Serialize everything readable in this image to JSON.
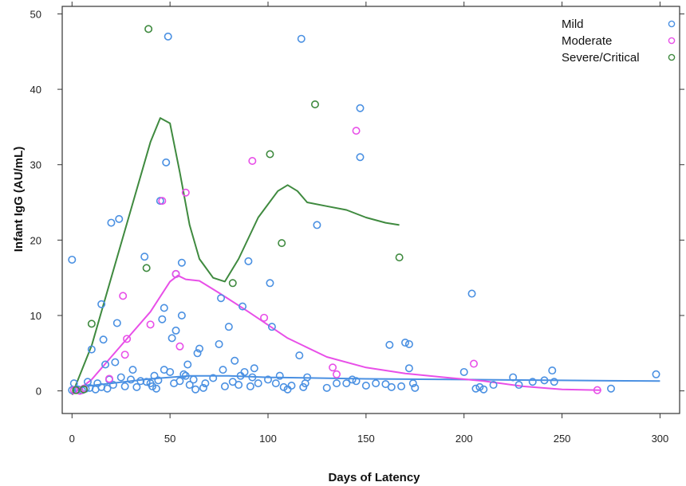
{
  "chart_data": {
    "type": "scatter",
    "title": "",
    "xlabel": "Days of Latency",
    "ylabel": "Infant IgG (AU/mL)",
    "xlim": [
      -5,
      310
    ],
    "ylim": [
      -3,
      51
    ],
    "x_ticks": [
      0,
      50,
      100,
      150,
      200,
      250,
      300
    ],
    "y_ticks": [
      0,
      10,
      20,
      30,
      40,
      50
    ],
    "x_tick_labels": [
      "0",
      "50",
      "100",
      "150",
      "200",
      "250",
      "300"
    ],
    "y_tick_labels": [
      "0",
      "10",
      "20",
      "30",
      "40",
      "50"
    ],
    "grid": false,
    "legend_position": "top-right",
    "series": [
      {
        "name": "Mild",
        "color": "#4A90E2",
        "points": [
          [
            0,
            17.4
          ],
          [
            0,
            0.1
          ],
          [
            1,
            1.0
          ],
          [
            3,
            0.2
          ],
          [
            5,
            0.1
          ],
          [
            7,
            0.3
          ],
          [
            8,
            1.2
          ],
          [
            9,
            0.4
          ],
          [
            10,
            5.5
          ],
          [
            12,
            0.2
          ],
          [
            13,
            1.0
          ],
          [
            15,
            0.5
          ],
          [
            15,
            11.5
          ],
          [
            16,
            6.8
          ],
          [
            17,
            3.5
          ],
          [
            18,
            0.3
          ],
          [
            19,
            1.5
          ],
          [
            20,
            22.3
          ],
          [
            21,
            0.8
          ],
          [
            22,
            3.8
          ],
          [
            23,
            9.0
          ],
          [
            24,
            22.8
          ],
          [
            25,
            1.8
          ],
          [
            27,
            0.6
          ],
          [
            30,
            1.5
          ],
          [
            31,
            2.8
          ],
          [
            33,
            0.5
          ],
          [
            35,
            1.3
          ],
          [
            37,
            17.8
          ],
          [
            38,
            1.2
          ],
          [
            40,
            1.0
          ],
          [
            41,
            0.6
          ],
          [
            42,
            2.0
          ],
          [
            43,
            0.3
          ],
          [
            44,
            1.4
          ],
          [
            45,
            25.2
          ],
          [
            46,
            9.5
          ],
          [
            47,
            2.8
          ],
          [
            47,
            11.0
          ],
          [
            48,
            30.3
          ],
          [
            49,
            47.0
          ],
          [
            50,
            2.5
          ],
          [
            51,
            7.0
          ],
          [
            52,
            1.0
          ],
          [
            53,
            8.0
          ],
          [
            53,
            15.5
          ],
          [
            55,
            1.3
          ],
          [
            56,
            17.0
          ],
          [
            56,
            10.0
          ],
          [
            57,
            2.2
          ],
          [
            58,
            2.0
          ],
          [
            59,
            3.5
          ],
          [
            60,
            0.8
          ],
          [
            62,
            1.5
          ],
          [
            63,
            0.2
          ],
          [
            64,
            5.0
          ],
          [
            65,
            5.6
          ],
          [
            67,
            0.4
          ],
          [
            68,
            1.0
          ],
          [
            72,
            1.7
          ],
          [
            75,
            6.2
          ],
          [
            76,
            12.3
          ],
          [
            77,
            2.8
          ],
          [
            78,
            0.6
          ],
          [
            80,
            8.5
          ],
          [
            82,
            1.2
          ],
          [
            83,
            4.0
          ],
          [
            85,
            0.8
          ],
          [
            86,
            2.0
          ],
          [
            87,
            11.2
          ],
          [
            88,
            2.5
          ],
          [
            90,
            17.2
          ],
          [
            91,
            0.6
          ],
          [
            92,
            1.8
          ],
          [
            93,
            3.0
          ],
          [
            95,
            1.0
          ],
          [
            100,
            1.5
          ],
          [
            101,
            14.3
          ],
          [
            102,
            8.5
          ],
          [
            104,
            1.0
          ],
          [
            106,
            2.0
          ],
          [
            108,
            0.5
          ],
          [
            110,
            0.2
          ],
          [
            112,
            0.7
          ],
          [
            116,
            4.7
          ],
          [
            117,
            46.7
          ],
          [
            118,
            0.5
          ],
          [
            119,
            1.0
          ],
          [
            120,
            1.8
          ],
          [
            125,
            22.0
          ],
          [
            130,
            0.4
          ],
          [
            135,
            1.0
          ],
          [
            140,
            1.0
          ],
          [
            143,
            1.5
          ],
          [
            145,
            1.3
          ],
          [
            147,
            37.5
          ],
          [
            147,
            31.0
          ],
          [
            150,
            0.7
          ],
          [
            155,
            1.0
          ],
          [
            160,
            0.9
          ],
          [
            162,
            6.1
          ],
          [
            163,
            0.5
          ],
          [
            168,
            0.6
          ],
          [
            170,
            6.4
          ],
          [
            172,
            3.0
          ],
          [
            172,
            6.2
          ],
          [
            174,
            1.0
          ],
          [
            175,
            0.4
          ],
          [
            200,
            2.5
          ],
          [
            204,
            12.9
          ],
          [
            206,
            0.3
          ],
          [
            208,
            0.5
          ],
          [
            210,
            0.2
          ],
          [
            215,
            0.8
          ],
          [
            225,
            1.8
          ],
          [
            228,
            0.8
          ],
          [
            235,
            1.2
          ],
          [
            241,
            1.4
          ],
          [
            245,
            2.7
          ],
          [
            246,
            1.2
          ],
          [
            275,
            0.3
          ],
          [
            298,
            2.2
          ]
        ],
        "trend": [
          [
            0,
            0.4
          ],
          [
            20,
            1.0
          ],
          [
            40,
            1.6
          ],
          [
            60,
            2.0
          ],
          [
            80,
            2.0
          ],
          [
            100,
            1.8
          ],
          [
            150,
            1.6
          ],
          [
            200,
            1.5
          ],
          [
            250,
            1.4
          ],
          [
            300,
            1.3
          ]
        ]
      },
      {
        "name": "Moderate",
        "color": "#E84FE8",
        "points": [
          [
            1,
            0.1
          ],
          [
            4,
            0.0
          ],
          [
            6,
            0.3
          ],
          [
            19,
            1.6
          ],
          [
            26,
            12.6
          ],
          [
            27,
            4.8
          ],
          [
            28,
            6.9
          ],
          [
            40,
            8.8
          ],
          [
            46,
            25.2
          ],
          [
            53,
            15.5
          ],
          [
            55,
            5.9
          ],
          [
            58,
            26.3
          ],
          [
            92,
            30.5
          ],
          [
            98,
            9.7
          ],
          [
            133,
            3.1
          ],
          [
            135,
            2.2
          ],
          [
            145,
            34.5
          ],
          [
            205,
            3.6
          ],
          [
            268,
            0.1
          ]
        ],
        "trend": [
          [
            0,
            -0.5
          ],
          [
            10,
            1.5
          ],
          [
            20,
            4.5
          ],
          [
            30,
            7.5
          ],
          [
            40,
            10.5
          ],
          [
            50,
            14.5
          ],
          [
            54,
            15.3
          ],
          [
            58,
            14.8
          ],
          [
            65,
            14.6
          ],
          [
            75,
            13.0
          ],
          [
            90,
            10.5
          ],
          [
            110,
            7.0
          ],
          [
            130,
            4.5
          ],
          [
            150,
            3.1
          ],
          [
            170,
            2.3
          ],
          [
            190,
            1.8
          ],
          [
            210,
            1.3
          ],
          [
            230,
            0.6
          ],
          [
            250,
            0.2
          ],
          [
            270,
            0.1
          ]
        ]
      },
      {
        "name": "Severe/Critical",
        "color": "#3F8A3F",
        "points": [
          [
            2,
            0.1
          ],
          [
            6,
            0.2
          ],
          [
            10,
            8.9
          ],
          [
            38,
            16.3
          ],
          [
            39,
            48.0
          ],
          [
            82,
            14.3
          ],
          [
            101,
            31.4
          ],
          [
            107,
            19.6
          ],
          [
            124,
            38.0
          ],
          [
            167,
            17.7
          ]
        ],
        "trend": [
          [
            0,
            -0.5
          ],
          [
            10,
            6.0
          ],
          [
            20,
            15.0
          ],
          [
            30,
            24.0
          ],
          [
            40,
            33.0
          ],
          [
            45,
            36.2
          ],
          [
            50,
            35.5
          ],
          [
            55,
            29.0
          ],
          [
            60,
            22.0
          ],
          [
            65,
            17.5
          ],
          [
            72,
            15.0
          ],
          [
            78,
            14.5
          ],
          [
            85,
            17.5
          ],
          [
            95,
            23.0
          ],
          [
            105,
            26.5
          ],
          [
            110,
            27.3
          ],
          [
            115,
            26.5
          ],
          [
            120,
            25.0
          ],
          [
            130,
            24.5
          ],
          [
            140,
            24.0
          ],
          [
            150,
            23.0
          ],
          [
            160,
            22.3
          ],
          [
            167,
            22.0
          ]
        ]
      }
    ]
  }
}
